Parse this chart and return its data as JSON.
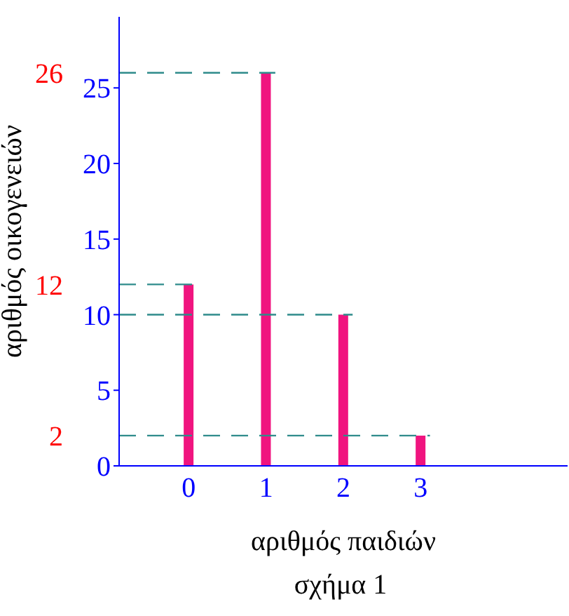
{
  "chart_data": {
    "type": "bar",
    "xlabel": "αριθμός παιδιών",
    "ylabel": "αριθμός οικογενειών",
    "annotations": [
      "σχήμα 1"
    ],
    "x": [
      0,
      1,
      2,
      3
    ],
    "values": [
      12,
      26,
      10,
      2
    ],
    "color": "#f0147f",
    "xlim": [
      -0.9,
      4.9
    ],
    "xticks": [
      0,
      1,
      2,
      3
    ],
    "ylim": [
      0,
      29.7
    ],
    "yticks": [
      0,
      5,
      10,
      15,
      20,
      25
    ],
    "grid": false,
    "ref_lines": [
      {
        "axis": "y",
        "value": 26,
        "label": "26",
        "color": "#2e8b8b",
        "line_style": "dashed"
      },
      {
        "axis": "y",
        "value": 12,
        "label": "12",
        "color": "#2e8b8b",
        "line_style": "dashed"
      },
      {
        "axis": "y",
        "value": 10,
        "color": "#2e8b8b",
        "line_style": "dashed"
      },
      {
        "axis": "y",
        "value": 2,
        "label": "2",
        "color": "#2e8b8b",
        "line_style": "dashed"
      }
    ]
  }
}
